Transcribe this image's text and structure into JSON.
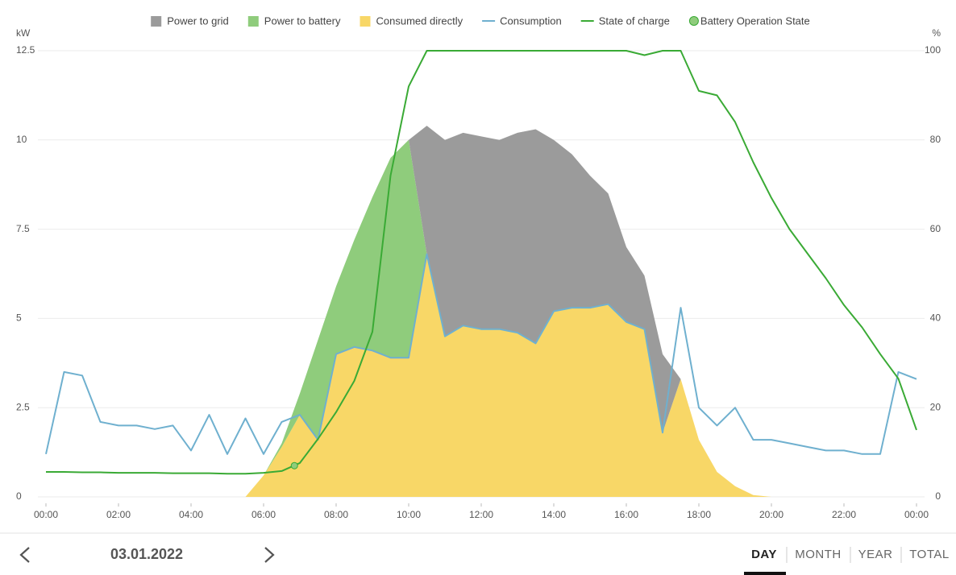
{
  "chart_data": {
    "type": "area",
    "stacked": true,
    "x_unit_label": "kW",
    "y2_unit_label": "%",
    "x": [
      0,
      0.5,
      1,
      1.5,
      2,
      2.5,
      3,
      3.5,
      4,
      4.5,
      5,
      5.5,
      6,
      6.5,
      7,
      7.5,
      8,
      8.5,
      9,
      9.5,
      10,
      10.5,
      11,
      11.5,
      12,
      12.5,
      13,
      13.5,
      14,
      14.5,
      15,
      15.5,
      16,
      16.5,
      17,
      17.5,
      18,
      18.5,
      19,
      19.5,
      20,
      20.5,
      21,
      21.5,
      22,
      22.5,
      23,
      23.5,
      24
    ],
    "xlim": [
      0,
      24
    ],
    "xticks": [
      {
        "value": 0,
        "label": "00:00"
      },
      {
        "value": 2,
        "label": "02:00"
      },
      {
        "value": 4,
        "label": "04:00"
      },
      {
        "value": 6,
        "label": "06:00"
      },
      {
        "value": 8,
        "label": "08:00"
      },
      {
        "value": 10,
        "label": "10:00"
      },
      {
        "value": 12,
        "label": "12:00"
      },
      {
        "value": 14,
        "label": "14:00"
      },
      {
        "value": 16,
        "label": "16:00"
      },
      {
        "value": 18,
        "label": "18:00"
      },
      {
        "value": 20,
        "label": "20:00"
      },
      {
        "value": 22,
        "label": "22:00"
      },
      {
        "value": 24,
        "label": "00:00"
      }
    ],
    "ylim": [
      0,
      12.5
    ],
    "yticks": [
      0,
      2.5,
      5,
      7.5,
      10,
      12.5
    ],
    "y2lim": [
      0,
      100
    ],
    "y2ticks": [
      0,
      20,
      40,
      60,
      80,
      100
    ],
    "grid": true,
    "legend": "top",
    "series": [
      {
        "name": "Power to grid",
        "kind": "area",
        "color": "#9b9b9b",
        "values": [
          0,
          0,
          0,
          0,
          0,
          0,
          0,
          0,
          0,
          0,
          0,
          0,
          0,
          0,
          0,
          0,
          0,
          0,
          0,
          0,
          0,
          3.6,
          5.5,
          5.4,
          5.4,
          5.3,
          5.6,
          6.0,
          4.8,
          4.3,
          3.7,
          3.1,
          2.1,
          1.5,
          2.2,
          0,
          0,
          0,
          0,
          0,
          0,
          0,
          0,
          0,
          0,
          0,
          0,
          0,
          0
        ]
      },
      {
        "name": "Power to battery",
        "kind": "area",
        "color": "#8fcc7c",
        "values": [
          0,
          0,
          0,
          0,
          0,
          0,
          0,
          0,
          0,
          0,
          0,
          0,
          0,
          0.1,
          0.6,
          2.8,
          1.9,
          3.0,
          4.3,
          5.6,
          6.1,
          0,
          0,
          0,
          0,
          0,
          0,
          0,
          0,
          0,
          0,
          0,
          0,
          0,
          0,
          0,
          0,
          0,
          0,
          0,
          0,
          0,
          0,
          0,
          0,
          0,
          0,
          0,
          0
        ]
      },
      {
        "name": "Consumed directly",
        "kind": "area",
        "color": "#f8d767",
        "values": [
          0,
          0,
          0,
          0,
          0,
          0,
          0,
          0,
          0,
          0,
          0,
          0,
          0.6,
          1.4,
          2.3,
          1.6,
          4.0,
          4.2,
          4.1,
          3.9,
          3.9,
          6.8,
          4.5,
          4.8,
          4.7,
          4.7,
          4.6,
          4.3,
          5.2,
          5.3,
          5.3,
          5.4,
          4.9,
          4.7,
          1.8,
          3.3,
          1.6,
          0.7,
          0.3,
          0.05,
          0,
          0,
          0,
          0,
          0,
          0,
          0,
          0,
          0
        ]
      },
      {
        "name": "Consumption",
        "kind": "line",
        "color": "#6fb0cf",
        "values": [
          1.2,
          3.5,
          3.4,
          2.1,
          2.0,
          2.0,
          1.9,
          2.0,
          1.3,
          2.3,
          1.2,
          2.2,
          1.2,
          2.1,
          2.3,
          1.6,
          4.0,
          4.2,
          4.1,
          3.9,
          3.9,
          6.8,
          4.5,
          4.8,
          4.7,
          4.7,
          4.6,
          4.3,
          5.2,
          5.3,
          5.3,
          5.4,
          4.9,
          4.7,
          1.8,
          5.3,
          2.5,
          2.0,
          2.5,
          1.6,
          1.6,
          1.5,
          1.4,
          1.3,
          1.3,
          1.2,
          1.2,
          3.5,
          3.3
        ]
      },
      {
        "name": "State of charge",
        "kind": "line",
        "axis": "y2",
        "color": "#3aaa35",
        "values": [
          5.6,
          5.6,
          5.5,
          5.5,
          5.4,
          5.4,
          5.4,
          5.3,
          5.3,
          5.3,
          5.2,
          5.2,
          5.4,
          5.8,
          7.6,
          13,
          19,
          26,
          37,
          72,
          92,
          100,
          100,
          100,
          100,
          100,
          100,
          100,
          100,
          100,
          100,
          100,
          100,
          99,
          100,
          100,
          91,
          90,
          84,
          75,
          67,
          60,
          54.5,
          49,
          43,
          38,
          32,
          26.5,
          15
        ]
      },
      {
        "name": "Battery Operation State",
        "kind": "scatter",
        "axis": "y2",
        "color": "#8fcc7c",
        "x": [
          6.85
        ],
        "values": [
          7
        ]
      }
    ]
  },
  "navigation": {
    "date": "03.01.2022",
    "tabs": [
      "DAY",
      "MONTH",
      "YEAR",
      "TOTAL"
    ]
  }
}
